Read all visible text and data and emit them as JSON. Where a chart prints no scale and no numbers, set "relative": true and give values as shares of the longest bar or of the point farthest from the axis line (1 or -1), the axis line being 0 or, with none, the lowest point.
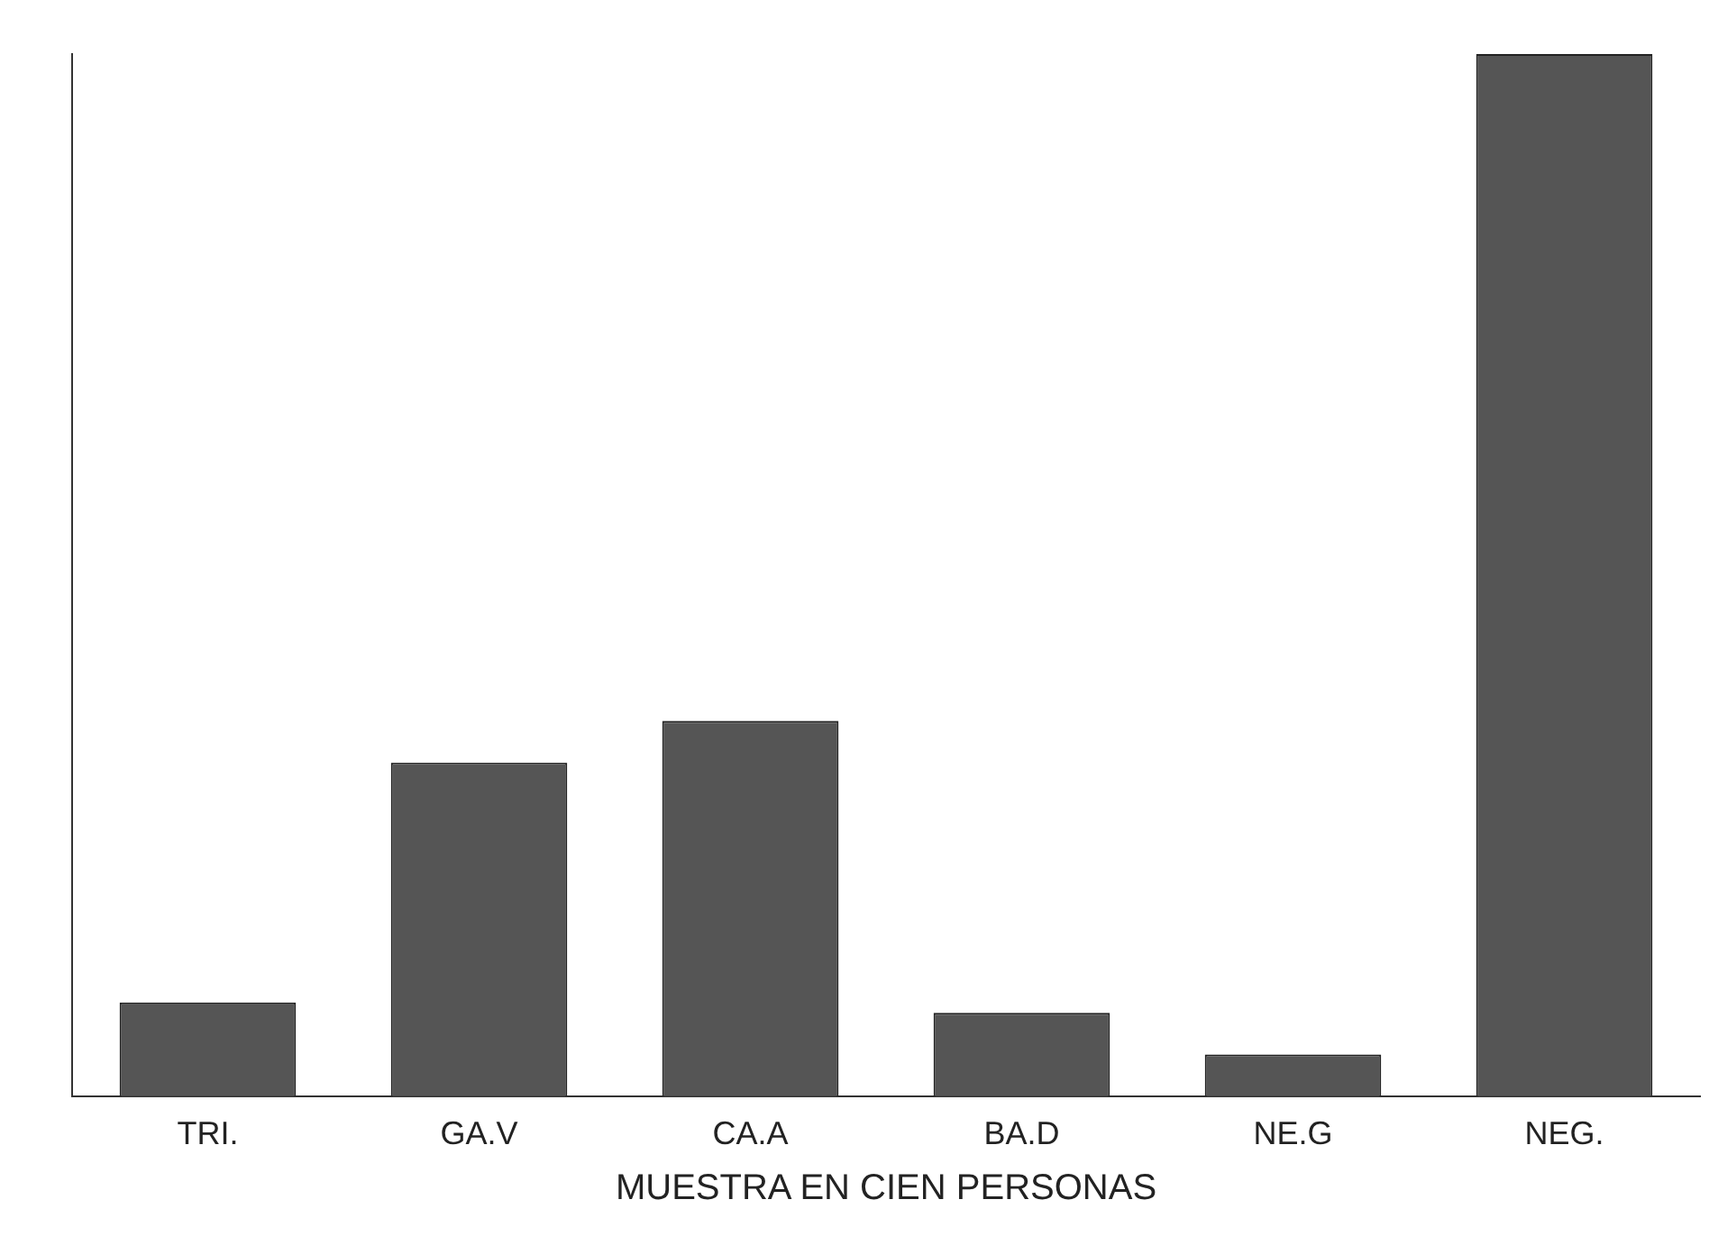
{
  "chart_data": {
    "type": "bar",
    "xlabel": "MUESTRA EN CIEN PERSONAS",
    "categories": [
      "TRI.",
      "GA.V",
      "CA.A",
      "BA.D",
      "NE.G",
      "NEG."
    ],
    "values": [
      0.09,
      0.32,
      0.36,
      0.08,
      0.04,
      1
    ],
    "color": "#555555",
    "relative": true
  }
}
